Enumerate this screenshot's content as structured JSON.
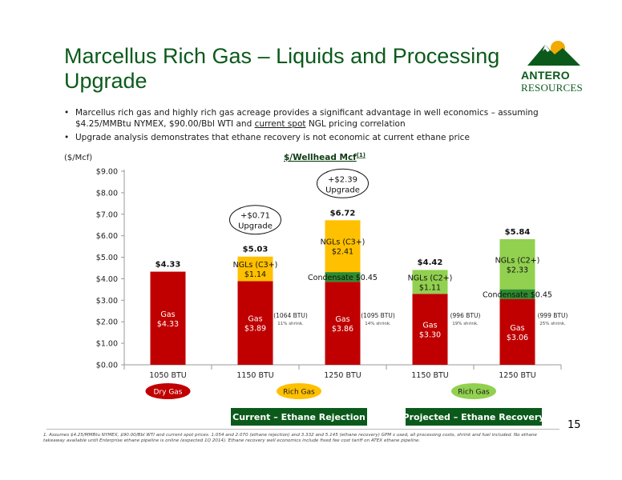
{
  "slide": {
    "title": "Marcellus Rich Gas – Liquids and Processing Upgrade",
    "logo_line1": "ANTERO",
    "logo_line2": "RESOURCES",
    "bullets": [
      {
        "pre": "Marcellus rich gas and highly rich gas acreage provides a significant advantage in well economics – assuming $4.25/MMBtu NYMEX, $90.00/Bbl WTI and ",
        "underlined": "current spot",
        "post": " NGL pricing correlation"
      },
      {
        "pre": "Upgrade analysis demonstrates that ethane recovery is not economic at current ethane price",
        "underlined": "",
        "post": ""
      }
    ],
    "page_number": "15",
    "footnote": "1.    Assumes $4.25/MMBtu NYMEX, $90.00/Bbl WTI and current spot prices. 1.054 and 2.070 (ethane rejection) and 3.332 and 5.145 (ethane recovery) GPM s used, all processing costs, shrink and fuel included. No ethane takeaway available until Enterprise ethane pipeline is online (expected 1Q 2014). Ethane recovery well economics include fixed fee cost tariff on ATEX ethane pipeline."
  },
  "chart_data": {
    "type": "bar",
    "title": "$/Wellhead Mcf",
    "title_superscript": "(1)",
    "ylabel": "($/Mcf)",
    "ylim": [
      0,
      9
    ],
    "yticks": [
      "$0.00",
      "$1.00",
      "$2.00",
      "$3.00",
      "$4.00",
      "$5.00",
      "$6.00",
      "$7.00",
      "$8.00",
      "$9.00"
    ],
    "grid": false,
    "categories": [
      "1050 BTU",
      "1150 BTU",
      "1250 BTU",
      "1150 BTU",
      "1250 BTU"
    ],
    "colors": {
      "gas": "#c00000",
      "ngl_c3": "#ffc000",
      "condensate": "#2e8b2e",
      "ngl_c2": "#92d050"
    },
    "bars": [
      {
        "total": 4.33,
        "total_label": "$4.33",
        "segments": [
          {
            "kind": "gas",
            "value": 4.33,
            "label": "Gas",
            "value_label": "$4.33"
          }
        ],
        "side_label": "",
        "side_sub": ""
      },
      {
        "total": 5.03,
        "total_label": "$5.03",
        "segments": [
          {
            "kind": "gas",
            "value": 3.89,
            "label": "Gas",
            "value_label": "$3.89"
          },
          {
            "kind": "ngl_c3",
            "value": 1.14,
            "label": "NGLs (C3+)",
            "value_label": "$1.14"
          }
        ],
        "side_label": "(1064 BTU)",
        "side_sub": "11% shrink."
      },
      {
        "total": 6.72,
        "total_label": "$6.72",
        "segments": [
          {
            "kind": "gas",
            "value": 3.86,
            "label": "Gas",
            "value_label": "$3.86"
          },
          {
            "kind": "condensate",
            "value": 0.45,
            "label": "Condensate $0.45",
            "value_label": ""
          },
          {
            "kind": "ngl_c3",
            "value": 2.41,
            "label": "NGLs (C3+)",
            "value_label": "$2.41"
          }
        ],
        "side_label": "(1095 BTU)",
        "side_sub": "14% shrink."
      },
      {
        "total": 4.42,
        "total_label": "$4.42",
        "segments": [
          {
            "kind": "gas",
            "value": 3.3,
            "label": "Gas",
            "value_label": "$3.30"
          },
          {
            "kind": "ngl_c2",
            "value": 1.11,
            "label": "NGLs (C2+)",
            "value_label": "$1.11"
          }
        ],
        "side_label": "(996 BTU)",
        "side_sub": "19% shrink."
      },
      {
        "total": 5.84,
        "total_label": "$5.84",
        "segments": [
          {
            "kind": "gas",
            "value": 3.06,
            "label": "Gas",
            "value_label": "$3.06"
          },
          {
            "kind": "condensate",
            "value": 0.45,
            "label": "Condensate $0.45",
            "value_label": ""
          },
          {
            "kind": "ngl_c2",
            "value": 2.33,
            "label": "NGLs (C2+)",
            "value_label": "$2.33"
          }
        ],
        "side_label": "(999 BTU)",
        "side_sub": "25% shrink."
      }
    ],
    "annotations": [
      {
        "text_line1": "+$0.71",
        "text_line2": "Upgrade",
        "bar_index": 1
      },
      {
        "text_line1": "+$2.39",
        "text_line2": "Upgrade",
        "bar_index": 2
      }
    ],
    "groups": [
      {
        "tag": "Dry Gas",
        "tag_color": "#c00000",
        "tag_text_color": "#ffffff",
        "bars": [
          0
        ],
        "caption": ""
      },
      {
        "tag": "Rich Gas",
        "tag_color": "#ffc000",
        "tag_text_color": "#1a1a1a",
        "bars": [
          1,
          2
        ],
        "caption": "Current – Ethane Rejection"
      },
      {
        "tag": "Rich Gas",
        "tag_color": "#92d050",
        "tag_text_color": "#1a1a1a",
        "bars": [
          3,
          4
        ],
        "caption": "Projected – Ethane Recovery"
      }
    ],
    "caption_color": "#0b5a1b"
  }
}
